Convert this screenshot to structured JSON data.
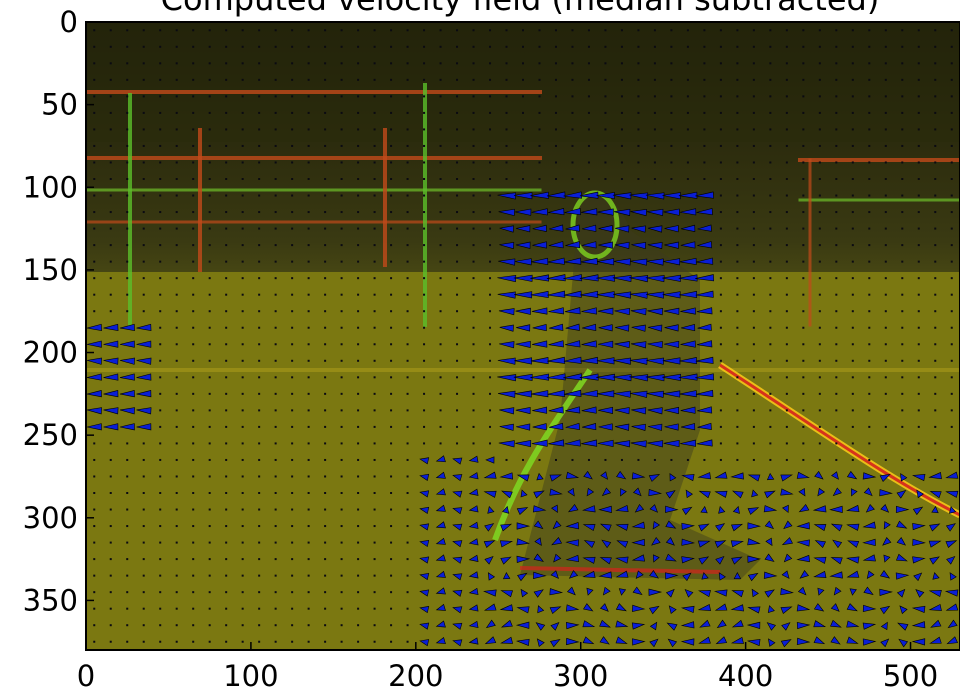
{
  "chart_data": {
    "type": "quiver",
    "title": "Computed velocity field (median subtracted)",
    "xlabel": "",
    "ylabel": "",
    "xlim": [
      0,
      530
    ],
    "ylim": [
      380,
      0
    ],
    "y_axis_inverted": true,
    "xticks": [
      0,
      100,
      200,
      300,
      400,
      500
    ],
    "yticks": [
      0,
      50,
      100,
      150,
      200,
      250,
      300,
      350
    ],
    "grid": false,
    "legend": "none",
    "background": "video frame overlay (red/green channel difference image)",
    "arrow_color": "#0a1fd6",
    "arrow_edge_color": "#000000",
    "grid_spacing": 10,
    "notable_flow_regions": [
      {
        "x_range": [
          250,
          380
        ],
        "y_range": [
          100,
          260
        ],
        "direction": "left"
      },
      {
        "x_range": [
          0,
          40
        ],
        "y_range": [
          185,
          250
        ],
        "direction": "left"
      },
      {
        "x_range": [
          240,
          530
        ],
        "y_range": [
          270,
          380
        ],
        "direction": "mixed"
      }
    ]
  }
}
